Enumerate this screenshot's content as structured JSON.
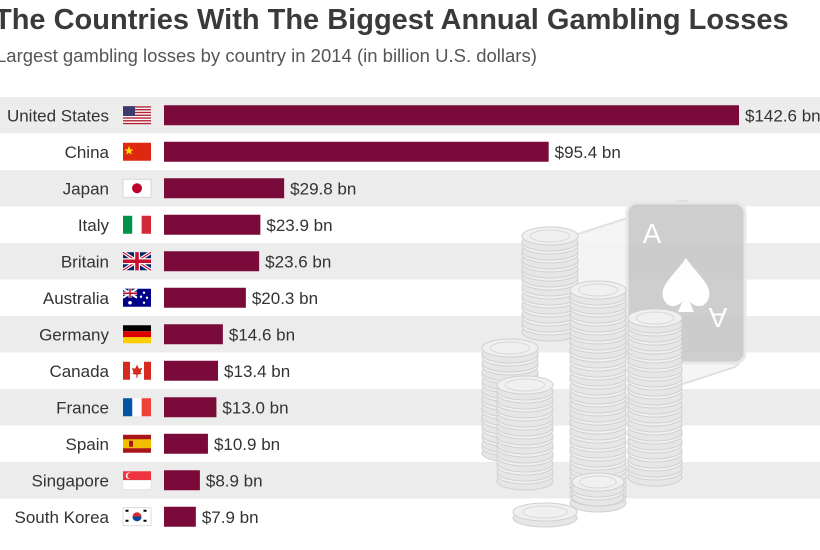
{
  "title": "The Countries With The Biggest Annual Gambling Losses",
  "subtitle": "Largest gambling losses by country in 2014 (in billion U.S. dollars)",
  "chart_data": {
    "type": "bar",
    "orientation": "horizontal",
    "categories": [
      "United States",
      "China",
      "Japan",
      "Italy",
      "Britain",
      "Australia",
      "Germany",
      "Canada",
      "France",
      "Spain",
      "Singapore",
      "South Korea"
    ],
    "values": [
      142.6,
      95.4,
      29.8,
      23.9,
      23.6,
      20.3,
      14.6,
      13.4,
      13.0,
      10.9,
      8.9,
      7.9
    ],
    "value_labels": [
      "$142.6 bn",
      "$95.4 bn",
      "$29.8 bn",
      "$23.9 bn",
      "$23.6 bn",
      "$20.3 bn",
      "$14.6 bn",
      "$13.4 bn",
      "$13.0 bn",
      "$10.9 bn",
      "$8.9 bn",
      "$7.9 bn"
    ],
    "flags": [
      "us-flag-icon",
      "cn-flag-icon",
      "jp-flag-icon",
      "it-flag-icon",
      "gb-flag-icon",
      "au-flag-icon",
      "de-flag-icon",
      "ca-flag-icon",
      "fr-flag-icon",
      "es-flag-icon",
      "sg-flag-icon",
      "kr-flag-icon"
    ],
    "bar_color": "#7a0a3a",
    "stripe_color": "#ececec",
    "grid": false
  }
}
